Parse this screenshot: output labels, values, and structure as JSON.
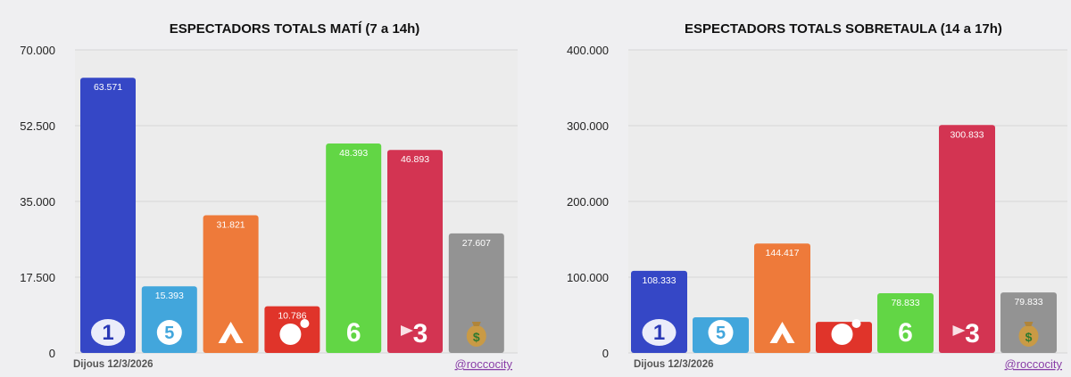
{
  "chart_data": [
    {
      "type": "bar",
      "title": "ESPECTADORS TOTALS MATÍ (7 a 14h)",
      "ylim": [
        0,
        70000
      ],
      "yticks": [
        "0",
        "17.500",
        "35.000",
        "52.500",
        "70.000"
      ],
      "ytick_values": [
        0,
        17500,
        35000,
        52500,
        70000
      ],
      "grid": true,
      "values": [
        63571,
        15393,
        31821,
        10786,
        48393,
        46893,
        27607
      ],
      "value_labels": [
        "63.571",
        "15.393",
        "31.821",
        "10.786",
        "48.393",
        "46.893",
        "27.607"
      ],
      "colors": [
        "#3547c6",
        "#42a6dc",
        "#ee7a3a",
        "#e0342a",
        "#62d645",
        "#d33452",
        "#939393"
      ],
      "category_icons": [
        "la1-logo-icon",
        "telecinco-logo-icon",
        "antena3-logo-icon",
        "cuatro-logo-icon",
        "lasexta-logo-icon",
        "tv3-logo-icon",
        "money-bag-icon"
      ],
      "footer_left": "Dijous 12/3/2026",
      "footer_right": "@roccocity"
    },
    {
      "type": "bar",
      "title": "ESPECTADORS TOTALS SOBRETAULA (14 a 17h)",
      "ylim": [
        0,
        400000
      ],
      "yticks": [
        "0",
        "100.000",
        "200.000",
        "300.000",
        "400.000"
      ],
      "ytick_values": [
        0,
        100000,
        200000,
        300000,
        400000
      ],
      "grid": true,
      "values": [
        108333,
        47000,
        144417,
        41000,
        78833,
        300833,
        79833
      ],
      "value_labels": [
        "108.333",
        "",
        "144.417",
        "",
        "78.833",
        "300.833",
        "79.833"
      ],
      "colors": [
        "#3547c6",
        "#42a6dc",
        "#ee7a3a",
        "#e0342a",
        "#62d645",
        "#d33452",
        "#939393"
      ],
      "category_icons": [
        "la1-logo-icon",
        "telecinco-logo-icon",
        "antena3-logo-icon",
        "cuatro-logo-icon",
        "lasexta-logo-icon",
        "tv3-logo-icon",
        "money-bag-icon"
      ],
      "footer_left": "Dijous 12/3/2026",
      "footer_right": "@roccocity"
    }
  ]
}
